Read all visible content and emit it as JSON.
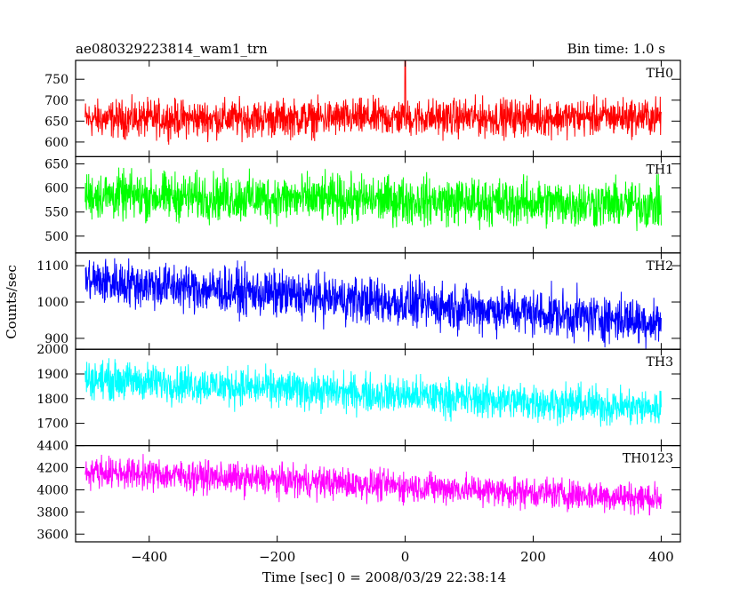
{
  "chart_data": {
    "type": "line",
    "title": "ae080329223814_wam1_trn",
    "subtitle": "Bin time: 1.0 s",
    "xlabel": "Time [sec] 0 = 2008/03/29 22:38:14",
    "ylabel": "Counts/sec",
    "xlim": [
      -515,
      430
    ],
    "xticks": [
      -400,
      -200,
      0,
      200,
      400
    ],
    "x_start": -500,
    "x_end": 400,
    "panels": [
      {
        "name": "TH0",
        "color": "#ff0000",
        "ylim": [
          565,
          795
        ],
        "yticks": [
          600,
          650,
          700,
          750
        ],
        "trend": [
          [
            -500,
            655
          ],
          [
            400,
            660
          ]
        ],
        "spread": 38,
        "approx_peak": [
          0,
          795
        ]
      },
      {
        "name": "TH1",
        "color": "#00ff00",
        "ylim": [
          465,
          665
        ],
        "yticks": [
          500,
          550,
          600,
          650
        ],
        "trend": [
          [
            -500,
            585
          ],
          [
            400,
            565
          ]
        ],
        "spread": 42
      },
      {
        "name": "TH2",
        "color": "#0000ff",
        "ylim": [
          870,
          1135
        ],
        "yticks": [
          900,
          1000,
          1100
        ],
        "trend": [
          [
            -500,
            1060
          ],
          [
            400,
            945
          ]
        ],
        "spread": 55
      },
      {
        "name": "TH3",
        "color": "#00ffff",
        "ylim": [
          1610,
          2000
        ],
        "yticks": [
          1700,
          1800,
          1900,
          2000
        ],
        "trend": [
          [
            -500,
            1880
          ],
          [
            400,
            1760
          ]
        ],
        "spread": 65
      },
      {
        "name": "TH0123",
        "color": "#ff00ff",
        "ylim": [
          3530,
          4400
        ],
        "yticks": [
          3600,
          3800,
          4000,
          4200,
          4400
        ],
        "trend": [
          [
            -500,
            4170
          ],
          [
            400,
            3920
          ]
        ],
        "spread": 120
      }
    ]
  }
}
